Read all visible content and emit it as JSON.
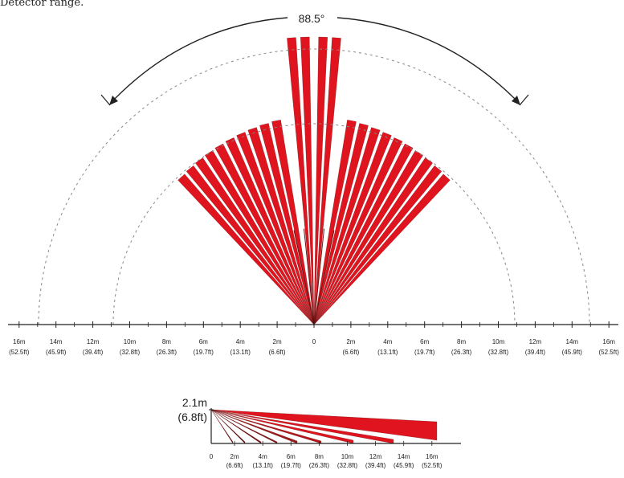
{
  "caption": "Detector range.",
  "top_view": {
    "angle_label": "88.5°",
    "ticks_left": [
      {
        "m": "16m",
        "ft": "(52.5ft)"
      },
      {
        "m": "14m",
        "ft": "(45.9ft)"
      },
      {
        "m": "12m",
        "ft": "(39.4ft)"
      },
      {
        "m": "10m",
        "ft": "(32.8ft)"
      },
      {
        "m": "8m",
        "ft": "(26.3ft)"
      },
      {
        "m": "6m",
        "ft": "(19.7ft)"
      },
      {
        "m": "4m",
        "ft": "(13.1ft)"
      },
      {
        "m": "2m",
        "ft": "(6.6ft)"
      }
    ],
    "tick_zero": "0",
    "ticks_right": [
      {
        "m": "2m",
        "ft": "(6.6ft)"
      },
      {
        "m": "4m",
        "ft": "(13.1ft)"
      },
      {
        "m": "6m",
        "ft": "(19.7ft)"
      },
      {
        "m": "8m",
        "ft": "(26.3ft)"
      },
      {
        "m": "10m",
        "ft": "(32.8ft)"
      },
      {
        "m": "12m",
        "ft": "(39.4ft)"
      },
      {
        "m": "14m",
        "ft": "(45.9ft)"
      },
      {
        "m": "16m",
        "ft": "(52.5ft)"
      }
    ]
  },
  "side_view": {
    "height_m": "2.1m",
    "height_ft": "(6.8ft)",
    "tick_zero": "0",
    "ticks": [
      {
        "m": "2m",
        "ft": "(6.6ft)"
      },
      {
        "m": "4m",
        "ft": "(13.1ft)"
      },
      {
        "m": "6m",
        "ft": "(19.7ft)"
      },
      {
        "m": "8m",
        "ft": "(26.3ft)"
      },
      {
        "m": "10m",
        "ft": "(32.8ft)"
      },
      {
        "m": "12m",
        "ft": "(39.4ft)"
      },
      {
        "m": "14m",
        "ft": "(45.9ft)"
      },
      {
        "m": "16m",
        "ft": "(52.5ft)"
      }
    ]
  },
  "colors": {
    "beam": "#e0141e",
    "beam_dark": "#6a1010",
    "axis": "#222222",
    "dashed": "#888888"
  }
}
